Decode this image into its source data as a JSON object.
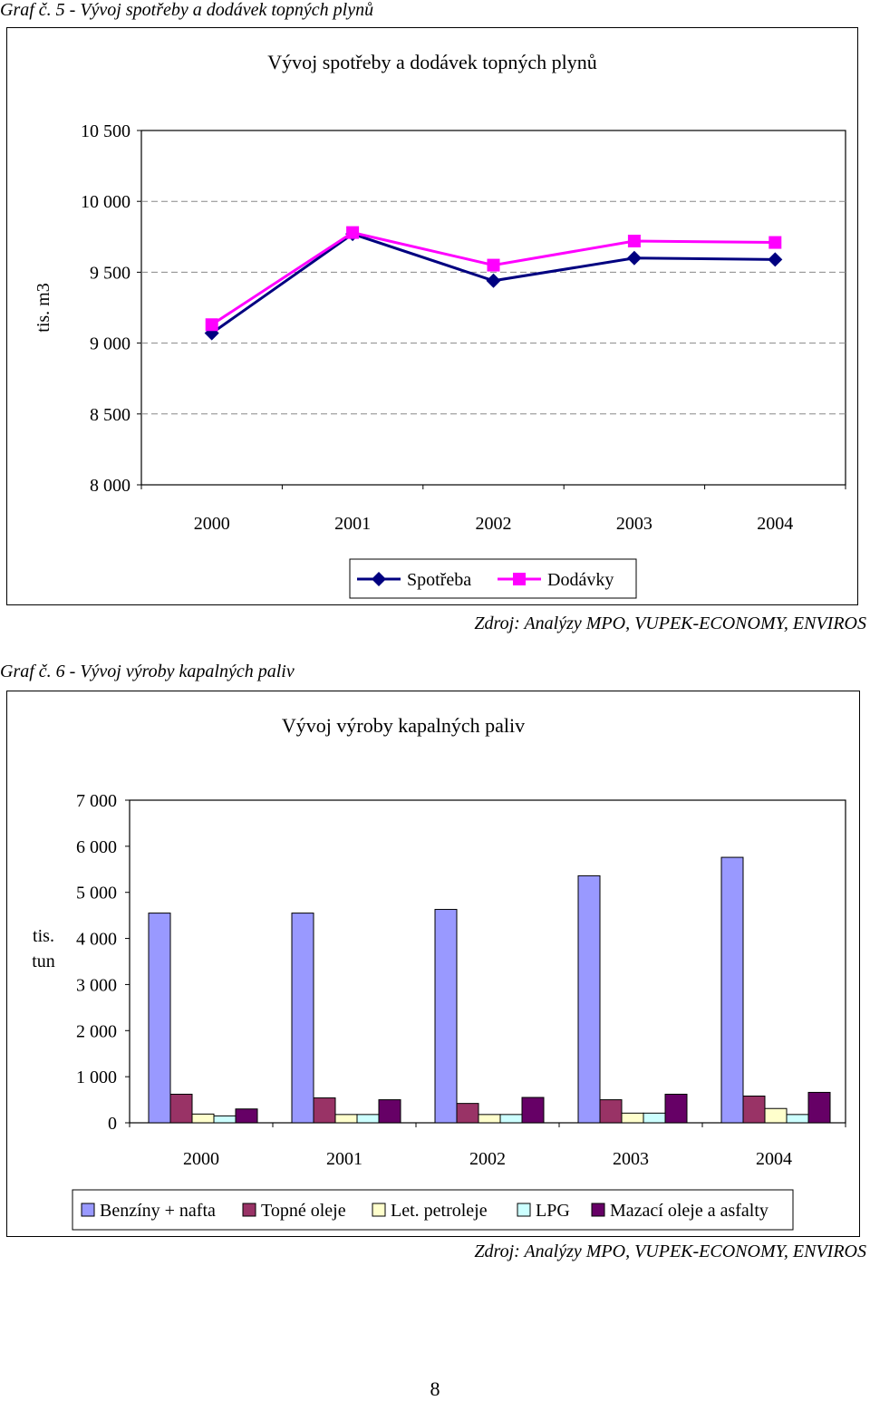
{
  "chart_data": [
    {
      "type": "line",
      "caption": "Graf č. 5 - Vývoj spotřeby a dodávek topných plynů",
      "title": "Vývoj spotřeby a dodávek topných plynů",
      "ylabel": "tis. m3",
      "xlabel": "",
      "categories": [
        "2000",
        "2001",
        "2002",
        "2003",
        "2004"
      ],
      "ylim": [
        8000,
        10500
      ],
      "yticks": [
        8000,
        8500,
        9000,
        9500,
        10000,
        10500
      ],
      "ytick_labels": [
        "8 000",
        "8 500",
        "9 000",
        "9 500",
        "10 000",
        "10 500"
      ],
      "grid": "dashed horizontal",
      "legend": "bottom",
      "series": [
        {
          "name": "Spotřeba",
          "marker": "diamond",
          "color": "#000080",
          "values": [
            9070,
            9770,
            9440,
            9600,
            9590
          ]
        },
        {
          "name": "Dodávky",
          "marker": "square",
          "color": "#FF00FF",
          "values": [
            9130,
            9780,
            9550,
            9720,
            9710
          ]
        }
      ],
      "source": "Zdroj: Analýzy MPO, VUPEK-ECONOMY, ENVIROS"
    },
    {
      "type": "bar",
      "caption": "Graf č. 6 - Vývoj výroby kapalných paliv",
      "title": "Vývoj výroby kapalných paliv",
      "ylabel": "tis. tun",
      "xlabel": "",
      "categories": [
        "2000",
        "2001",
        "2002",
        "2003",
        "2004"
      ],
      "ylim": [
        0,
        7000
      ],
      "yticks": [
        0,
        1000,
        2000,
        3000,
        4000,
        5000,
        6000,
        7000
      ],
      "ytick_labels": [
        "0",
        "1 000",
        "2 000",
        "3 000",
        "4 000",
        "5 000",
        "6 000",
        "7 000"
      ],
      "grid": "none",
      "legend": "bottom",
      "series": [
        {
          "name": "Benzíny + nafta",
          "color": "#9999FF",
          "values": [
            4550,
            4550,
            4630,
            5360,
            5760
          ]
        },
        {
          "name": "Topné oleje",
          "color": "#993366",
          "values": [
            620,
            540,
            420,
            500,
            580
          ]
        },
        {
          "name": "Let. petroleje",
          "color": "#FFFFCC",
          "values": [
            190,
            180,
            180,
            210,
            310
          ]
        },
        {
          "name": "LPG",
          "color": "#CCFFFF",
          "values": [
            150,
            180,
            180,
            210,
            180
          ]
        },
        {
          "name": "Mazací oleje a asfalty",
          "color": "#660066",
          "values": [
            300,
            500,
            550,
            620,
            660
          ]
        }
      ],
      "source": "Zdroj: Analýzy MPO, VUPEK-ECONOMY, ENVIROS"
    }
  ],
  "page_number": "8"
}
